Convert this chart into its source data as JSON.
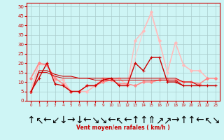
{
  "background_color": "#cef5f5",
  "grid_color": "#aacccc",
  "xlabel": "Vent moyen/en rafales ( km/h )",
  "x": [
    0,
    1,
    2,
    3,
    4,
    5,
    6,
    7,
    8,
    9,
    10,
    11,
    12,
    13,
    14,
    15,
    16,
    17,
    18,
    19,
    20,
    21,
    22,
    23
  ],
  "ylim": [
    0,
    52
  ],
  "xlim": [
    -0.5,
    23.5
  ],
  "yticks": [
    0,
    5,
    10,
    15,
    20,
    25,
    30,
    35,
    40,
    45,
    50
  ],
  "xticks": [
    0,
    1,
    2,
    3,
    4,
    5,
    6,
    7,
    8,
    9,
    10,
    11,
    12,
    13,
    14,
    15,
    16,
    17,
    18,
    19,
    20,
    21,
    22,
    23
  ],
  "wind_dirs": [
    "↑",
    "↖",
    "←",
    "↙",
    "↓",
    "→",
    "↓",
    "←",
    "↘",
    "↘",
    "←",
    "↖",
    "←",
    "↑",
    "↑",
    "⇑",
    "↗",
    "↗",
    "→",
    "↑",
    "↑",
    "←",
    "↖",
    "↘"
  ],
  "tick_color": "#cc0000",
  "axis_color": "#cc0000",
  "series": [
    {
      "name": "light_pink_peak_gust",
      "y": [
        5,
        20,
        19,
        11,
        11,
        5,
        5,
        5,
        8,
        12,
        11,
        12,
        8,
        32,
        37,
        47,
        32,
        15,
        31,
        19,
        16,
        16,
        12,
        12
      ],
      "color": "#ffbbbb",
      "lw": 1.0,
      "marker": "D",
      "ms": 2.0,
      "zorder": 2
    },
    {
      "name": "light_pink_line2",
      "y": [
        5,
        19,
        19,
        11,
        11,
        5,
        5,
        5,
        8,
        12,
        11,
        12,
        8,
        23,
        37,
        46,
        31,
        15,
        31,
        19,
        16,
        16,
        12,
        12
      ],
      "color": "#ffcccc",
      "lw": 0.8,
      "marker": null,
      "ms": 0,
      "zorder": 1
    },
    {
      "name": "medium_pink_lower",
      "y": [
        12,
        20,
        19,
        12,
        9,
        5,
        5,
        8,
        8,
        10,
        11,
        9,
        9,
        8,
        10,
        10,
        11,
        11,
        11,
        10,
        10,
        9,
        12,
        12
      ],
      "color": "#ff8888",
      "lw": 1.0,
      "marker": "D",
      "ms": 2.0,
      "zorder": 3
    },
    {
      "name": "medium_pink_line2",
      "y": [
        12,
        20,
        19,
        12,
        9,
        5,
        5,
        8,
        8,
        10,
        11,
        9,
        9,
        8,
        10,
        10,
        11,
        11,
        11,
        10,
        10,
        9,
        12,
        12
      ],
      "color": "#ffaaaa",
      "lw": 0.8,
      "marker": null,
      "ms": 0,
      "zorder": 2
    },
    {
      "name": "dark_red_main",
      "y": [
        5,
        12,
        20,
        9,
        8,
        5,
        5,
        8,
        8,
        11,
        12,
        8,
        8,
        20,
        16,
        23,
        23,
        10,
        10,
        8,
        8,
        8,
        8,
        8
      ],
      "color": "#cc0000",
      "lw": 1.0,
      "marker": "+",
      "ms": 3.5,
      "zorder": 6
    },
    {
      "name": "dark_red_line2",
      "y": [
        4,
        16,
        16,
        14,
        13,
        13,
        12,
        12,
        12,
        12,
        12,
        12,
        12,
        12,
        12,
        12,
        12,
        12,
        12,
        10,
        10,
        8,
        8,
        8
      ],
      "color": "#cc0000",
      "lw": 0.8,
      "marker": null,
      "ms": 0,
      "zorder": 5
    },
    {
      "name": "dark_red_line3",
      "y": [
        4,
        15,
        15,
        13,
        12,
        12,
        12,
        12,
        11,
        11,
        11,
        11,
        11,
        11,
        11,
        11,
        11,
        11,
        11,
        8,
        8,
        8,
        8,
        8
      ],
      "color": "#cc0000",
      "lw": 0.7,
      "marker": null,
      "ms": 0,
      "zorder": 4
    }
  ]
}
